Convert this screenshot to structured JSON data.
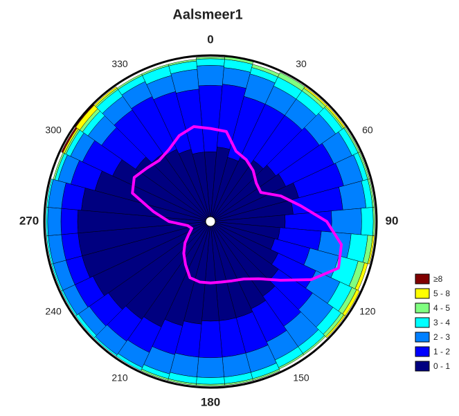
{
  "chart_data": {
    "type": "windrose",
    "title": "Aalsmeer1",
    "directions": [
      0,
      10,
      20,
      30,
      40,
      50,
      60,
      70,
      80,
      90,
      100,
      110,
      120,
      130,
      140,
      150,
      160,
      170,
      180,
      190,
      200,
      210,
      220,
      230,
      240,
      250,
      260,
      270,
      280,
      290,
      300,
      310,
      320,
      330,
      340,
      350
    ],
    "rlim": [
      0,
      100
    ],
    "thetaticks": [
      0,
      30,
      60,
      90,
      120,
      150,
      180,
      210,
      240,
      270,
      300,
      330
    ],
    "series": [
      {
        "name": "0 - 1",
        "color": "#000080",
        "values": [
          42,
          45,
          40,
          42,
          45,
          48,
          50,
          55,
          50,
          45,
          42,
          40,
          45,
          50,
          55,
          58,
          60,
          60,
          60,
          62,
          65,
          70,
          72,
          75,
          78,
          80,
          80,
          80,
          78,
          72,
          65,
          55,
          50,
          48,
          45,
          42
        ]
      },
      {
        "name": "1 - 2",
        "color": "#0000ff",
        "values": [
          40,
          38,
          38,
          36,
          33,
          32,
          32,
          28,
          30,
          28,
          25,
          22,
          25,
          25,
          22,
          22,
          22,
          22,
          22,
          20,
          18,
          17,
          16,
          14,
          12,
          10,
          10,
          10,
          12,
          15,
          20,
          25,
          32,
          35,
          36,
          38
        ]
      },
      {
        "name": "2 - 3",
        "color": "#0080ff",
        "values": [
          12,
          10,
          14,
          12,
          12,
          12,
          12,
          12,
          14,
          18,
          18,
          18,
          16,
          15,
          15,
          12,
          12,
          12,
          12,
          12,
          12,
          10,
          10,
          8,
          8,
          8,
          8,
          8,
          8,
          8,
          8,
          10,
          10,
          10,
          10,
          12
        ]
      },
      {
        "name": "3 - 4",
        "color": "#00ffff",
        "values": [
          4,
          5,
          4,
          6,
          6,
          5,
          4,
          3,
          4,
          7,
          10,
          12,
          8,
          6,
          5,
          5,
          4,
          4,
          4,
          4,
          3,
          2,
          1,
          2,
          1,
          1,
          1,
          1,
          1,
          2,
          3,
          4,
          5,
          4,
          6,
          5
        ]
      },
      {
        "name": "4 - 5",
        "color": "#80ff80",
        "values": [
          1,
          2,
          2,
          3,
          2,
          1,
          1,
          1,
          1,
          1,
          3,
          4,
          3,
          2,
          1,
          1,
          1,
          1,
          1,
          1,
          1,
          0,
          0,
          0,
          0,
          0,
          0,
          0,
          0,
          1,
          1,
          2,
          1,
          1,
          1,
          1
        ]
      },
      {
        "name": "5 - 8",
        "color": "#ffff00",
        "values": [
          0,
          0,
          0,
          0,
          1,
          1,
          0,
          0,
          0,
          0,
          1,
          2,
          2,
          1,
          0,
          0,
          0,
          0,
          0,
          0,
          0,
          0,
          0,
          0,
          0,
          0,
          0,
          0,
          0,
          0,
          1,
          3,
          1,
          0,
          0,
          0
        ]
      },
      {
        "name": "≥8",
        "color": "#800000",
        "values": [
          0,
          0,
          0,
          0,
          0,
          0,
          0,
          0,
          0,
          0,
          0,
          0,
          0,
          0,
          0,
          0,
          0,
          0,
          0,
          0,
          0,
          0,
          0,
          0,
          0,
          0,
          0,
          0,
          0,
          0,
          1,
          1,
          0,
          0,
          0,
          0
        ]
      }
    ],
    "line": {
      "color": "#ff00ff",
      "values": [
        56,
        55,
        45,
        43,
        40,
        36,
        35,
        45,
        55,
        70,
        80,
        82,
        70,
        55,
        45,
        40,
        38,
        37,
        37,
        37,
        36,
        30,
        25,
        20,
        15,
        12,
        14,
        25,
        35,
        50,
        53,
        50,
        48,
        50,
        55,
        58
      ]
    }
  }
}
